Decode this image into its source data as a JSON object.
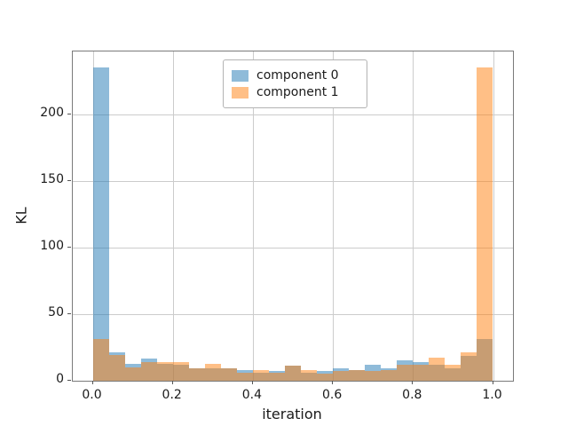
{
  "chart_data": {
    "type": "bar",
    "subtype": "overlaid-histogram",
    "title": "",
    "xlabel": "iteration",
    "ylabel": "KL",
    "bin_start": 0.0,
    "bin_width": 0.04,
    "num_bins": 25,
    "series": [
      {
        "name": "component 0",
        "color": "#1f77b4",
        "alpha": 0.5,
        "values": [
          235,
          21,
          12.5,
          16.5,
          12.5,
          12,
          9,
          9,
          9,
          8,
          6,
          7,
          11,
          6,
          7.5,
          9,
          8,
          12,
          9,
          15,
          14,
          12,
          9.5,
          18.5,
          31
        ]
      },
      {
        "name": "component 1",
        "color": "#ff7f0e",
        "alpha": 0.5,
        "values": [
          31,
          19,
          10,
          14,
          14,
          14,
          9,
          12.5,
          9,
          6,
          8,
          6,
          11,
          8,
          5.5,
          7,
          8,
          7.5,
          8,
          12,
          12,
          17,
          12,
          21,
          235
        ]
      }
    ],
    "xticks": [
      0.0,
      0.2,
      0.4,
      0.6,
      0.8,
      1.0
    ],
    "xtick_labels": [
      "0.0",
      "0.2",
      "0.4",
      "0.6",
      "0.8",
      "1.0"
    ],
    "yticks": [
      0,
      50,
      100,
      150,
      200
    ],
    "ytick_labels": [
      "0",
      "50",
      "100",
      "150",
      "200"
    ],
    "xlim": [
      -0.05,
      1.05
    ],
    "ylim": [
      0,
      247
    ],
    "grid": true,
    "legend_position": "upper center",
    "legend": {
      "items": [
        {
          "label": "component 0"
        },
        {
          "label": "component 1"
        }
      ]
    },
    "colors": {
      "grid": "#cccccc",
      "spine": "#7a7a7a",
      "tick": "#555555",
      "text": "#1a1a1a",
      "overlap_observed": "#c79d74"
    }
  }
}
